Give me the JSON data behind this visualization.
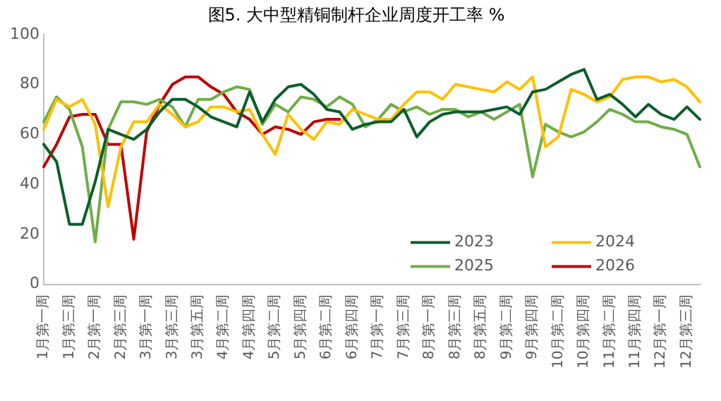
{
  "chart_data": {
    "type": "line",
    "title": "图5. 大中型精铜制杆企业周度开工率 %",
    "categories": [
      "1月第一周",
      null,
      "1月第三周",
      null,
      "2月第一周",
      null,
      "2月第三周",
      null,
      "3月第一周",
      null,
      "3月第三周",
      null,
      "3月第五周",
      null,
      "4月第二周",
      null,
      "4月第四周",
      null,
      "5月第二周",
      null,
      "5月第四周",
      null,
      "6月第二周",
      null,
      "6月第四周",
      null,
      "7月第一周",
      null,
      "7月第三周",
      null,
      "8月第一周",
      null,
      "8月第三周",
      null,
      "8月第五周",
      null,
      "9月第二周",
      null,
      "9月第四周",
      null,
      "10月第二周",
      null,
      "10月第四周",
      null,
      "11月第二周",
      null,
      "11月第四周",
      null,
      "12月第一周",
      null,
      "12月第三周",
      null
    ],
    "series": [
      {
        "name": "2023",
        "color": "#0b5e2a",
        "values": [
          56,
          49,
          24,
          24,
          41,
          62,
          60,
          58,
          62,
          69,
          74,
          74,
          71,
          67,
          65,
          63,
          77,
          65,
          74,
          79,
          80,
          76,
          70,
          69,
          62,
          64,
          65,
          65,
          70,
          59,
          65,
          68,
          69,
          69,
          69,
          70,
          71,
          68,
          77,
          78,
          81,
          84,
          86,
          74,
          76,
          72,
          67,
          72,
          68,
          66,
          71,
          66
        ]
      },
      {
        "name": "2024",
        "color": "#ffc000",
        "values": [
          62,
          74,
          71,
          74,
          64,
          31,
          55,
          65,
          65,
          72,
          68,
          63,
          65,
          71,
          71,
          69,
          70,
          60,
          52,
          68,
          62,
          58,
          65,
          64,
          70,
          68,
          66,
          66,
          72,
          77,
          77,
          74,
          80,
          79,
          78,
          77,
          81,
          78,
          83,
          55,
          59,
          78,
          76,
          73,
          75,
          82,
          83,
          83,
          81,
          82,
          79,
          73
        ]
      },
      {
        "name": "2025",
        "color": "#70ad47",
        "values": [
          65,
          75,
          70,
          55,
          17,
          62,
          73,
          73,
          72,
          74,
          71,
          63,
          74,
          74,
          77,
          79,
          78,
          64,
          72,
          69,
          75,
          74,
          71,
          75,
          72,
          63,
          66,
          72,
          69,
          71,
          68,
          70,
          70,
          67,
          69,
          66,
          69,
          72,
          43,
          64,
          61,
          59,
          61,
          65,
          70,
          68,
          65,
          65,
          63,
          62,
          60,
          47
        ]
      },
      {
        "name": "2026",
        "color": "#c00000",
        "values": [
          47,
          56,
          67,
          68,
          68,
          56,
          56,
          18,
          61,
          72,
          80,
          83,
          83,
          79,
          76,
          69,
          66,
          60,
          63,
          62,
          60,
          65,
          66,
          66,
          null,
          null,
          null,
          null,
          null,
          null,
          null,
          null,
          null,
          null,
          null,
          null,
          null,
          null,
          null,
          null,
          null,
          null,
          null,
          null,
          null,
          null,
          null,
          null,
          null,
          null,
          null,
          null
        ]
      }
    ],
    "ylim": [
      0,
      100
    ],
    "yticks": [
      0,
      20,
      40,
      60,
      80,
      100
    ],
    "grid": false,
    "legend": "bottom right",
    "marker": "none",
    "line_style": "solid"
  }
}
